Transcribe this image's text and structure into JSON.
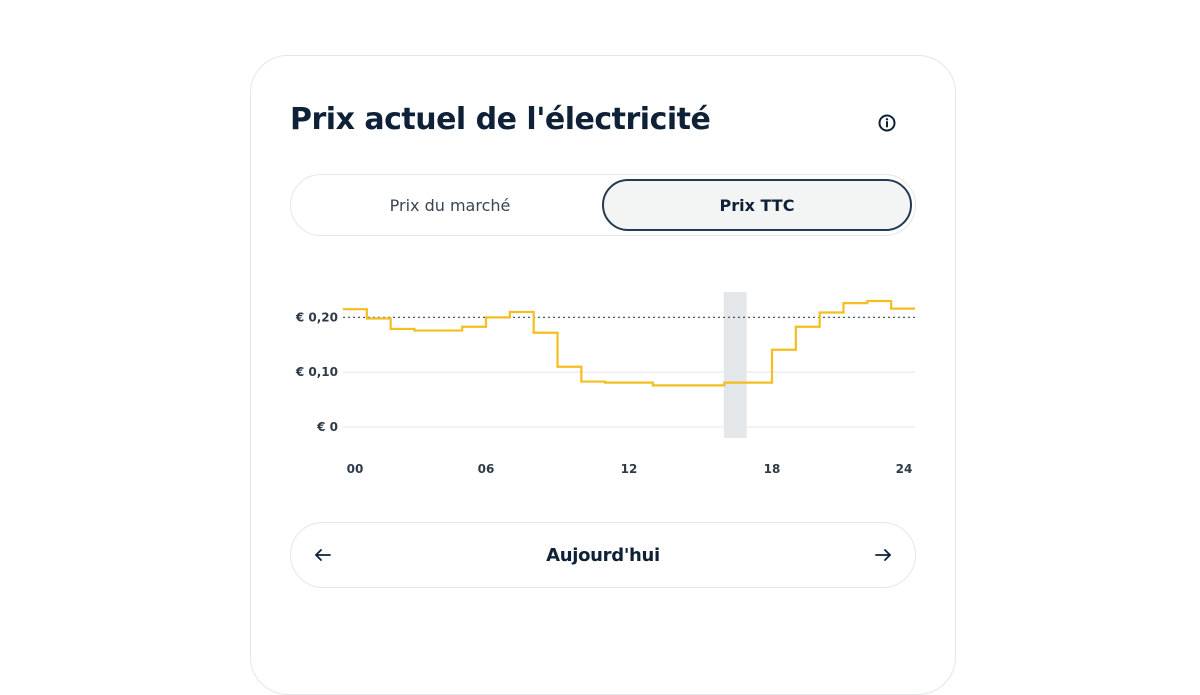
{
  "widget": {
    "title": "Prix actuel de l'électricité",
    "info_icon": "info-icon"
  },
  "toggle": {
    "options": [
      {
        "label": "Prix du marché",
        "selected": false
      },
      {
        "label": "Prix TTC",
        "selected": true
      }
    ]
  },
  "chart_data": {
    "type": "line",
    "step": true,
    "x_ticks": [
      "00",
      "06",
      "12",
      "18",
      "24"
    ],
    "xlim": [
      0,
      24
    ],
    "y_ticks": [
      {
        "value": 0,
        "label": "€ 0"
      },
      {
        "value": 0.1,
        "label": "€ 0,10"
      },
      {
        "value": 0.2,
        "label": "€ 0,20"
      }
    ],
    "ylim": [
      -0.02,
      0.25
    ],
    "reference_line": {
      "value": 0.2,
      "style": "dotted"
    },
    "highlight_hour": [
      16,
      17
    ],
    "hours": [
      0,
      1,
      2,
      3,
      4,
      5,
      6,
      7,
      8,
      9,
      10,
      11,
      12,
      13,
      14,
      15,
      16,
      17,
      18,
      19,
      20,
      21,
      22,
      23
    ],
    "values": [
      0.215,
      0.198,
      0.179,
      0.176,
      0.176,
      0.183,
      0.2,
      0.21,
      0.172,
      0.11,
      0.083,
      0.081,
      0.081,
      0.076,
      0.076,
      0.076,
      0.081,
      0.081,
      0.141,
      0.183,
      0.209,
      0.226,
      0.23,
      0.216
    ],
    "colors": {
      "line": "#f5bd1f",
      "reference": "#4a5566",
      "grid": "#eceef1",
      "highlight": "#e4e7ea",
      "tick_text": "#2f3a48"
    }
  },
  "navigation": {
    "label": "Aujourd'hui",
    "prev_icon": "arrow-left-icon",
    "next_icon": "arrow-right-icon"
  }
}
